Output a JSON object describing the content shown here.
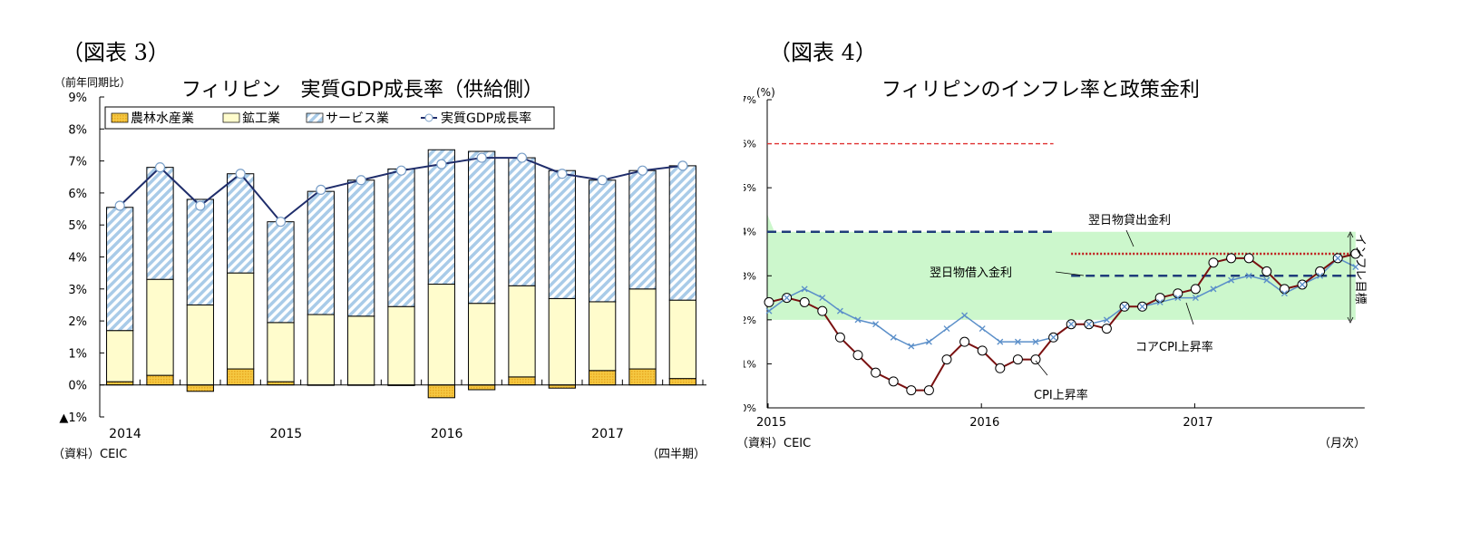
{
  "figures": [
    {
      "label": "（図表 3）"
    },
    {
      "label": "（図表 4）"
    }
  ],
  "chart_data": [
    {
      "type": "bar",
      "stacked": true,
      "title": "フィリピン　実質GDP成長率（供給側）",
      "ylabel": "（前年同期比）",
      "ylim": [
        -1,
        9
      ],
      "yticks": [
        "▲1%",
        "0%",
        "1%",
        "2%",
        "3%",
        "4%",
        "5%",
        "6%",
        "7%",
        "8%",
        "9%"
      ],
      "xticklabels": [
        {
          "label": "2014",
          "index": 0
        },
        {
          "label": "2015",
          "index": 4
        },
        {
          "label": "2016",
          "index": 8
        },
        {
          "label": "2017",
          "index": 12
        }
      ],
      "categories": [
        "2014Q1",
        "2014Q2",
        "2014Q3",
        "2014Q4",
        "2015Q1",
        "2015Q2",
        "2015Q3",
        "2015Q4",
        "2016Q1",
        "2016Q2",
        "2016Q3",
        "2016Q4",
        "2017Q1",
        "2017Q2",
        "2017Q3"
      ],
      "series": [
        {
          "name": "農林水産業",
          "kind": "bar",
          "color": "#f5c842",
          "values": [
            0.1,
            0.3,
            -0.2,
            0.5,
            0.1,
            0.0,
            0.0,
            -0.02,
            -0.4,
            -0.15,
            0.25,
            -0.1,
            0.45,
            0.5,
            0.2
          ]
        },
        {
          "name": "鉱工業",
          "kind": "bar",
          "color": "#fffccc",
          "values": [
            1.6,
            3.0,
            2.5,
            3.0,
            1.85,
            2.2,
            2.15,
            2.45,
            3.15,
            2.55,
            2.85,
            2.7,
            2.15,
            2.5,
            2.45
          ]
        },
        {
          "name": "サービス業",
          "kind": "bar",
          "color": "#a9cbe8",
          "values": [
            3.85,
            3.5,
            3.3,
            3.1,
            3.15,
            3.85,
            4.25,
            4.3,
            4.2,
            4.75,
            4.0,
            4.0,
            3.8,
            3.7,
            4.2
          ]
        },
        {
          "name": "実質GDP成長率",
          "kind": "line",
          "color": "#1f2d6b",
          "values": [
            5.6,
            6.8,
            5.6,
            6.6,
            5.1,
            6.1,
            6.4,
            6.7,
            6.9,
            7.1,
            7.1,
            6.6,
            6.4,
            6.7,
            6.85
          ]
        }
      ],
      "legend": "top-left inside",
      "source": "（資料）CEIC",
      "freq": "（四半期）"
    },
    {
      "type": "line",
      "title": "フィリピンのインフレ率と政策金利",
      "ylabel": "(%)",
      "ylim": [
        0,
        7
      ],
      "yticks": [
        "0%",
        "1%",
        "2%",
        "3%",
        "4%",
        "5%",
        "6%",
        "7%"
      ],
      "xticklabels": [
        {
          "label": "2015",
          "index": 0
        },
        {
          "label": "2016",
          "index": 12
        },
        {
          "label": "2017",
          "index": 24
        }
      ],
      "x": [
        "2015-01",
        "2015-02",
        "2015-03",
        "2015-04",
        "2015-05",
        "2015-06",
        "2015-07",
        "2015-08",
        "2015-09",
        "2015-10",
        "2015-11",
        "2015-12",
        "2016-01",
        "2016-02",
        "2016-03",
        "2016-04",
        "2016-05",
        "2016-06",
        "2016-07",
        "2016-08",
        "2016-09",
        "2016-10",
        "2016-11",
        "2016-12",
        "2017-01",
        "2017-02",
        "2017-03",
        "2017-04",
        "2017-05",
        "2017-06",
        "2017-07",
        "2017-08",
        "2017-09",
        "2017-10"
      ],
      "series": [
        {
          "name": "CPI上昇率",
          "color": "#7a1010",
          "marker": "circle",
          "values": [
            2.4,
            2.5,
            2.4,
            2.2,
            1.6,
            1.2,
            0.8,
            0.6,
            0.4,
            0.4,
            1.1,
            1.5,
            1.3,
            0.9,
            1.1,
            1.1,
            1.6,
            1.9,
            1.9,
            1.8,
            2.3,
            2.3,
            2.5,
            2.6,
            2.7,
            3.3,
            3.4,
            3.4,
            3.1,
            2.7,
            2.8,
            3.1,
            3.4,
            3.5
          ]
        },
        {
          "name": "コアCPI上昇率",
          "color": "#5b8fc9",
          "marker": "x",
          "values": [
            2.2,
            2.5,
            2.7,
            2.5,
            2.2,
            2.0,
            1.9,
            1.6,
            1.4,
            1.5,
            1.8,
            2.1,
            1.8,
            1.5,
            1.5,
            1.5,
            1.6,
            1.9,
            1.9,
            2.0,
            2.3,
            2.3,
            2.4,
            2.5,
            2.5,
            2.7,
            2.9,
            3.0,
            2.9,
            2.6,
            2.8,
            3.0,
            3.4,
            3.2
          ]
        }
      ],
      "policy_rates": [
        {
          "name": "翌日物貸出金利",
          "color": "#d22",
          "style": "dashed-red",
          "segments": [
            {
              "from": "2015-01",
              "to": "2016-05",
              "value": 6.0
            },
            {
              "from": "2016-06",
              "to": "2017-10",
              "value": 3.5
            }
          ]
        },
        {
          "name": "翌日物借入金利",
          "color": "#1f3d7a",
          "style": "dashed",
          "segments": [
            {
              "from": "2015-01",
              "to": "2016-05",
              "value": 4.0
            },
            {
              "from": "2016-06",
              "to": "2017-10",
              "value": 3.0
            }
          ]
        }
      ],
      "target_band": {
        "name": "インフレ目標",
        "low": 2.0,
        "high": 4.0,
        "color": "#ccf7cc"
      },
      "annotations": [
        "翌日物貸出金利",
        "翌日物借入金利",
        "コアCPI上昇率",
        "CPI上昇率",
        "インフレ目標"
      ],
      "source": "（資料）CEIC",
      "freq": "（月次）"
    }
  ]
}
